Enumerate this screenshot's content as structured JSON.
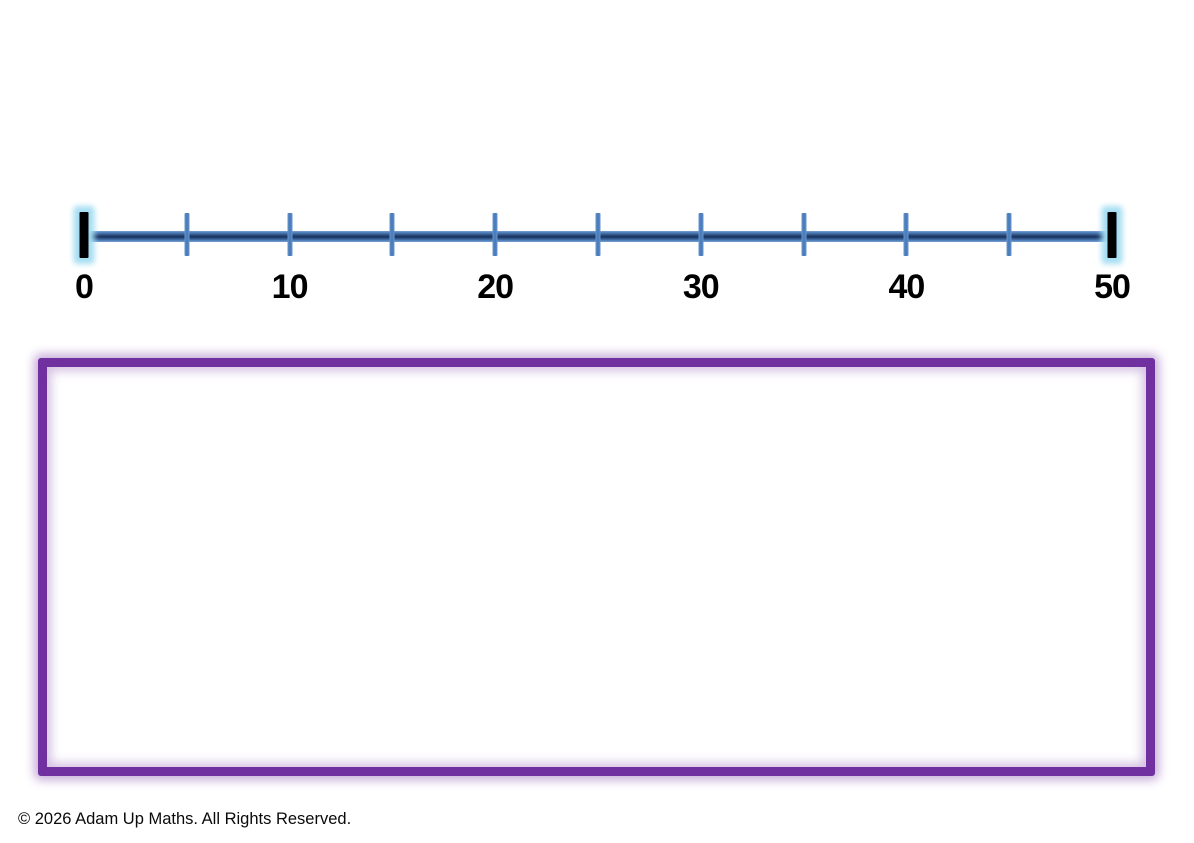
{
  "number_line": {
    "min": 0,
    "max": 50,
    "tick_interval": 5,
    "major_label_interval": 10,
    "tick_count": 11,
    "labels": [
      {
        "value": "0",
        "position_pct": 0
      },
      {
        "value": "10",
        "position_pct": 20
      },
      {
        "value": "20",
        "position_pct": 40
      },
      {
        "value": "30",
        "position_pct": 60
      },
      {
        "value": "40",
        "position_pct": 80
      },
      {
        "value": "50",
        "position_pct": 100
      }
    ],
    "colors": {
      "line_blue": "#4F81BD",
      "line_core": "#17335C",
      "tick": "#4A7EBD",
      "endpoint": "#000000",
      "endpoint_glow": "#A5DEF2"
    }
  },
  "answer_box": {
    "border_color": "#7030A0"
  },
  "footer": {
    "copyright": "© 2026 Adam Up Maths. All Rights Reserved."
  }
}
